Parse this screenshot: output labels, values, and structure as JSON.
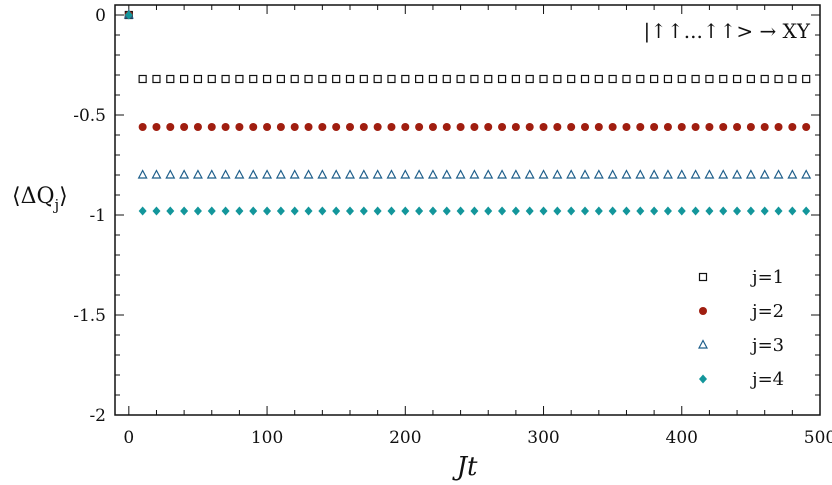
{
  "chart_data": {
    "type": "scatter",
    "title": "",
    "annotation": "|↑↑...↑↑> → XY",
    "xlabel": "Jt",
    "ylabel_main": "⟨ΔQ",
    "ylabel_sub": "j",
    "ylabel_close": "⟩",
    "xlim": [
      -10,
      500
    ],
    "ylim": [
      -2,
      0.05
    ],
    "xticks": [
      0,
      100,
      200,
      300,
      400,
      500
    ],
    "xtick_labels": [
      "0",
      "100",
      "200",
      "300",
      "400",
      "500"
    ],
    "yticks": [
      0,
      -0.5,
      -1,
      -1.5,
      -2
    ],
    "ytick_labels": [
      "0",
      "-0.5",
      "-1",
      "-1.5",
      "-2"
    ],
    "grid": false,
    "legend_position": "bottom-right",
    "x": [
      0,
      10,
      20,
      30,
      40,
      50,
      60,
      70,
      80,
      90,
      100,
      110,
      120,
      130,
      140,
      150,
      160,
      170,
      180,
      190,
      200,
      210,
      220,
      230,
      240,
      250,
      260,
      270,
      280,
      290,
      300,
      310,
      320,
      330,
      340,
      350,
      360,
      370,
      380,
      390,
      400,
      410,
      420,
      430,
      440,
      450,
      460,
      470,
      480,
      490
    ],
    "series": [
      {
        "name": "j=1",
        "marker": "open-square",
        "color": "#111111",
        "start": 0,
        "plateau": -0.32
      },
      {
        "name": "j=2",
        "marker": "filled-circle",
        "color": "#a01e10",
        "start": 0,
        "plateau": -0.56
      },
      {
        "name": "j=3",
        "marker": "open-triangle",
        "color": "#1f5f8b",
        "start": 0,
        "plateau": -0.8
      },
      {
        "name": "j=4",
        "marker": "filled-diamond",
        "color": "#13969b",
        "start": 0,
        "plateau": -0.98
      }
    ]
  }
}
